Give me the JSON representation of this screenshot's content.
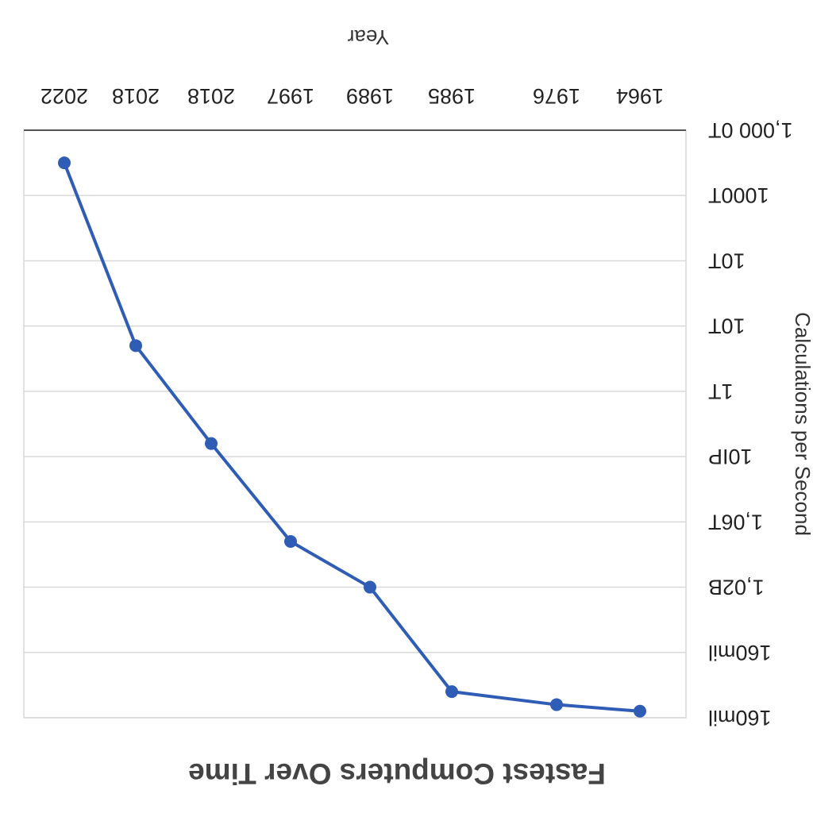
{
  "chart_data": {
    "type": "line",
    "title": "Fastest Computers Over Time",
    "xlabel": "Year",
    "ylabel": "Calculations per Second",
    "categories": [
      "1964",
      "1976",
      "1985",
      "1989",
      "1997",
      "2018",
      "2018",
      "2022"
    ],
    "y_tick_labels": [
      "1,000 0T",
      "1000T",
      "10T",
      "10T",
      "1T",
      "10IP",
      "1,06T",
      "1,02B",
      "160mil",
      "160mil"
    ],
    "y_axis_scale": "log (irregular tick labels)",
    "series": [
      {
        "values_tick_index": [
          8.9,
          8.8,
          8.6,
          7.0,
          6.3,
          4.8,
          3.3,
          0.5
        ]
      }
    ],
    "grid": "horizontal",
    "legend": "none",
    "orientation": "rotated-180",
    "colors": {
      "line": "#2f5cb5",
      "marker": "#2f5cb5",
      "grid": "#d9d9d9",
      "axis": "#222222",
      "title": "#444444"
    }
  }
}
